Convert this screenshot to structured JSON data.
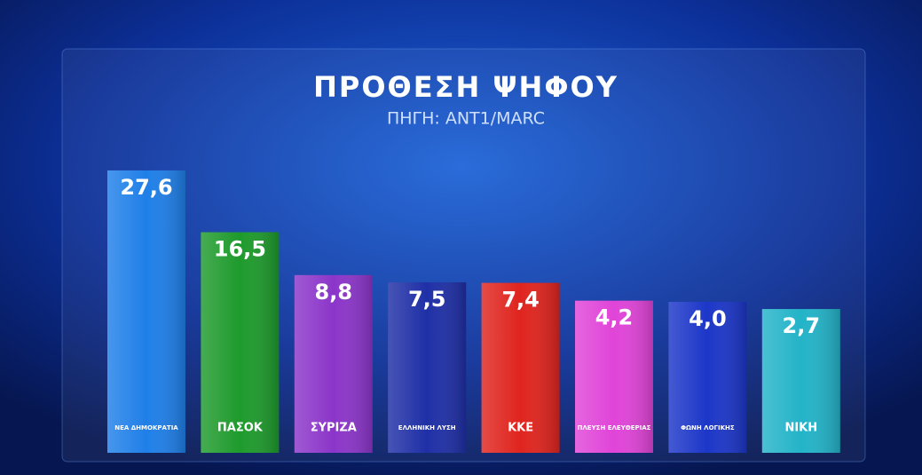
{
  "chart_data": {
    "type": "bar",
    "title": "ΠΡΟΘΕΣΗ ΨΗΦΟΥ",
    "subtitle": "ΠΗΓΗ: ANT1/MARC",
    "categories": [
      "ΝΕΑ ΔΗΜΟΚΡΑΤΙΑ",
      "ΠΑΣΟΚ",
      "ΣΥΡΙΖΑ",
      "ΕΛΛΗΝΙΚΗ ΛΥΣΗ",
      "ΚΚΕ",
      "ΠΛΕΥΣΗ ΕΛΕΥΘΕΡΙΑΣ",
      "ΦΩΝΗ ΛΟΓΙΚΗΣ",
      "ΝΙΚΗ"
    ],
    "values": [
      27.6,
      16.5,
      8.8,
      7.5,
      7.4,
      4.2,
      4.0,
      2.7
    ],
    "value_labels": [
      "27,6",
      "16,5",
      "8,8",
      "7,5",
      "7,4",
      "4,2",
      "4,0",
      "2,7"
    ],
    "colors": [
      "#1f7fe8",
      "#1e9a2c",
      "#8b35c9",
      "#1f2fa6",
      "#e0241e",
      "#e044d8",
      "#1c36c8",
      "#23b3c8"
    ]
  }
}
